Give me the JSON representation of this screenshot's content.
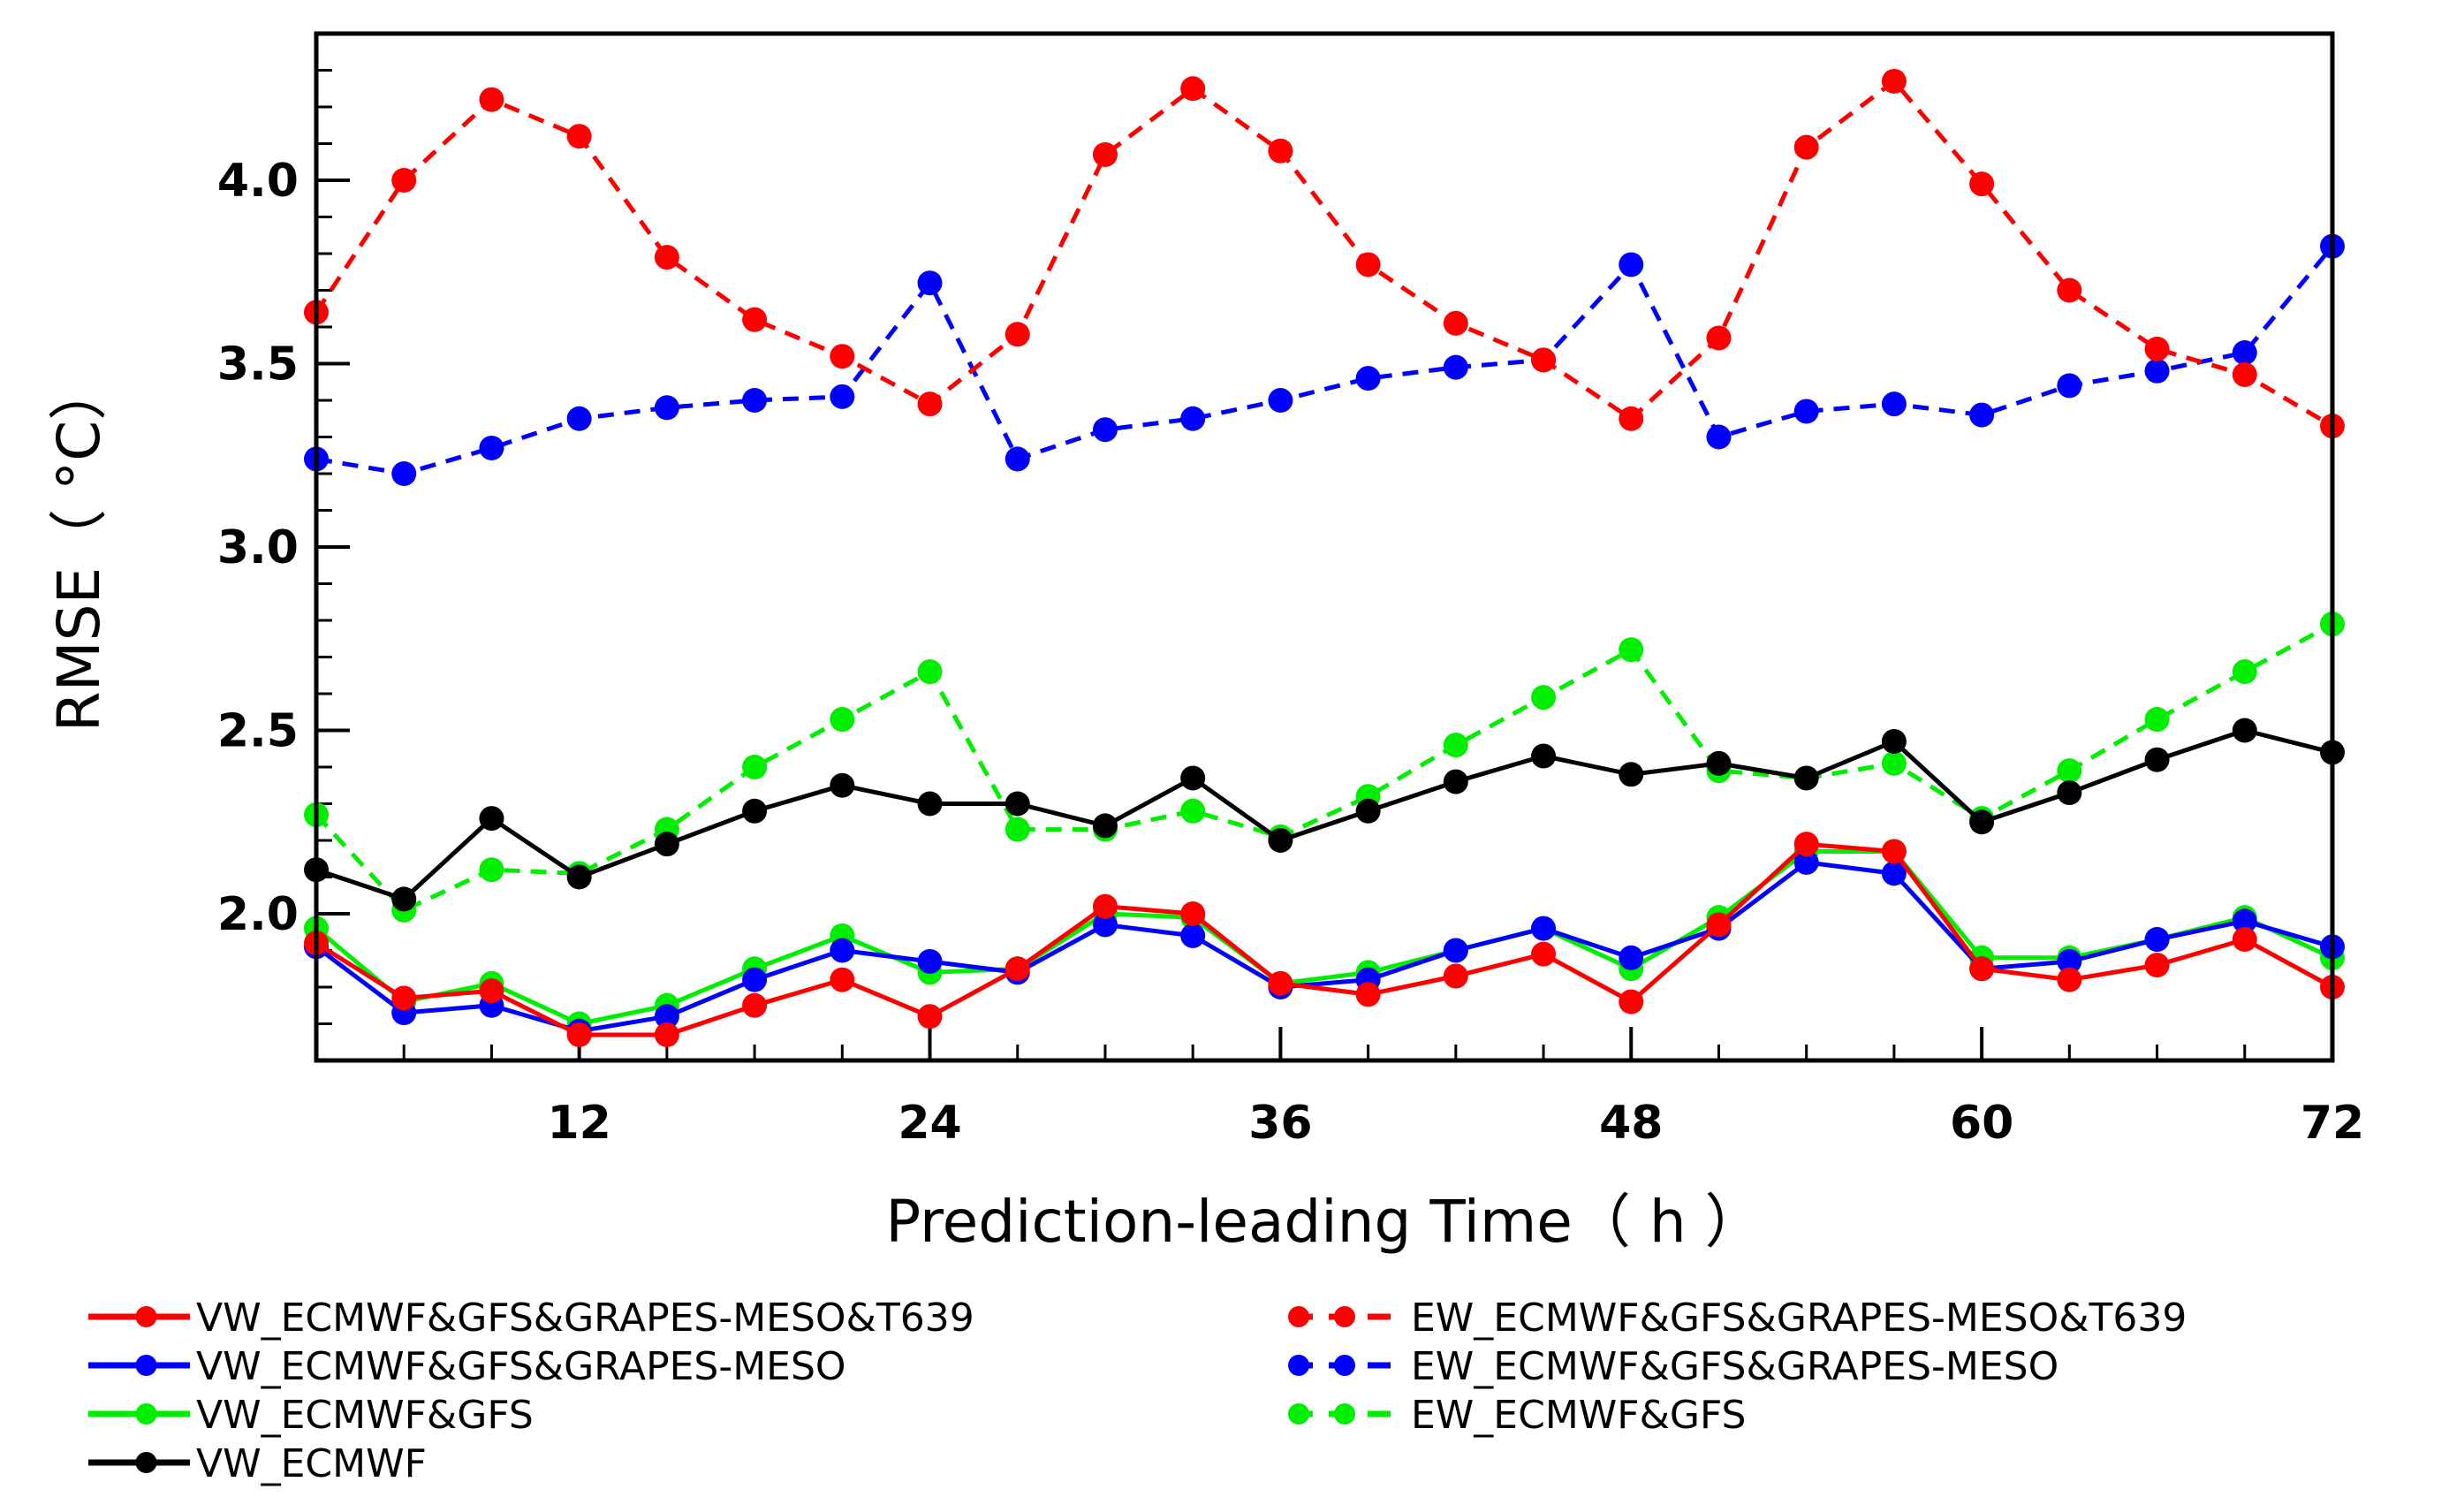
{
  "chart_data": {
    "type": "line",
    "title": "",
    "xlabel": "Prediction-leading Time（ h ）",
    "ylabel": "RMSE（ °C）",
    "xlim": [
      3,
      72
    ],
    "ylim": [
      1.6,
      4.4
    ],
    "xticks": [
      12,
      24,
      36,
      48,
      60,
      72
    ],
    "yticks": [
      2.0,
      2.5,
      3.0,
      3.5,
      4.0
    ],
    "ytick_labels": [
      "2.0",
      "2.5",
      "3.0",
      "3.5",
      "4.0"
    ],
    "x": [
      3,
      6,
      9,
      12,
      15,
      18,
      21,
      24,
      27,
      30,
      33,
      36,
      39,
      42,
      45,
      48,
      51,
      54,
      57,
      60,
      63,
      66,
      69,
      72
    ],
    "series": [
      {
        "name": "VW_ECMWF&GFS&GRAPES-MESO&T639",
        "color": "#ff0000",
        "style": "solid",
        "values": [
          1.92,
          1.77,
          1.79,
          1.67,
          1.67,
          1.75,
          1.82,
          1.72,
          1.85,
          2.02,
          2.0,
          1.81,
          1.78,
          1.83,
          1.89,
          1.76,
          1.97,
          2.19,
          2.17,
          1.85,
          1.82,
          1.86,
          1.93,
          1.8
        ]
      },
      {
        "name": "VW_ECMWF&GFS&GRAPES-MESO",
        "color": "#0000ff",
        "style": "solid",
        "values": [
          1.91,
          1.73,
          1.75,
          1.68,
          1.72,
          1.82,
          1.9,
          1.87,
          1.84,
          1.97,
          1.94,
          1.8,
          1.82,
          1.9,
          1.96,
          1.88,
          1.96,
          2.14,
          2.11,
          1.85,
          1.87,
          1.93,
          1.98,
          1.91
        ]
      },
      {
        "name": "VW_ECMWF&GFS",
        "color": "#00ee00",
        "style": "solid",
        "values": [
          1.96,
          1.76,
          1.81,
          1.7,
          1.75,
          1.85,
          1.94,
          1.84,
          1.85,
          2.0,
          1.99,
          1.81,
          1.84,
          1.9,
          1.96,
          1.85,
          1.99,
          2.17,
          2.17,
          1.88,
          1.88,
          1.93,
          1.99,
          1.88
        ]
      },
      {
        "name": "VW_ECMWF",
        "color": "#000000",
        "style": "solid",
        "values": [
          2.12,
          2.04,
          2.26,
          2.1,
          2.19,
          2.28,
          2.35,
          2.3,
          2.3,
          2.24,
          2.37,
          2.2,
          2.28,
          2.36,
          2.43,
          2.38,
          2.41,
          2.37,
          2.47,
          2.25,
          2.33,
          2.42,
          2.5,
          2.44
        ]
      },
      {
        "name": "EW_ECMWF&GFS&GRAPES-MESO&T639",
        "color": "#ff0000",
        "style": "dashed",
        "values": [
          3.64,
          4.0,
          4.22,
          4.12,
          3.79,
          3.62,
          3.52,
          3.39,
          3.58,
          4.07,
          4.25,
          4.08,
          3.77,
          3.61,
          3.51,
          3.35,
          3.57,
          4.09,
          4.27,
          3.99,
          3.7,
          3.54,
          3.47,
          3.33
        ]
      },
      {
        "name": "EW_ECMWF&GFS&GRAPES-MESO",
        "color": "#0000ff",
        "style": "dashed",
        "values": [
          3.24,
          3.2,
          3.27,
          3.35,
          3.38,
          3.4,
          3.41,
          3.72,
          3.24,
          3.32,
          3.35,
          3.4,
          3.46,
          3.49,
          3.51,
          3.77,
          3.3,
          3.37,
          3.39,
          3.36,
          3.44,
          3.48,
          3.53,
          3.82
        ]
      },
      {
        "name": "EW_ECMWF&GFS",
        "color": "#00ee00",
        "style": "dashed",
        "values": [
          2.27,
          2.01,
          2.12,
          2.11,
          2.23,
          2.4,
          2.53,
          2.66,
          2.23,
          2.23,
          2.28,
          2.21,
          2.32,
          2.46,
          2.59,
          2.72,
          2.39,
          2.37,
          2.41,
          2.26,
          2.39,
          2.53,
          2.66,
          2.79
        ]
      }
    ]
  }
}
